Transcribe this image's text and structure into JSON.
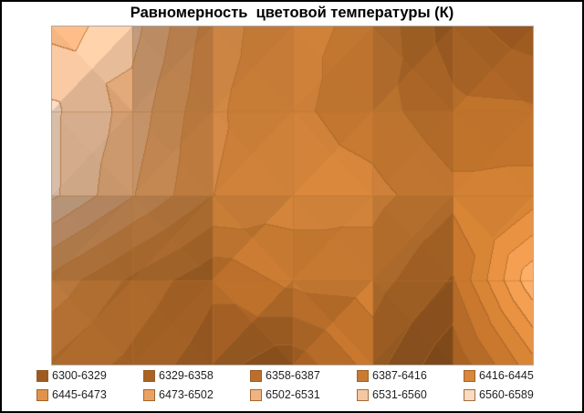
{
  "chart_data": {
    "type": "heatmap",
    "subtype": "surface-contour-top-view",
    "title": "Равномерность  цветовой температуры (К)",
    "grid_rows": 5,
    "grid_cols": 7,
    "values": [
      [
        6522,
        6542,
        6460,
        6422,
        6410,
        6342,
        6310
      ],
      [
        6566,
        6520,
        6450,
        6422,
        6400,
        6365,
        6362
      ],
      [
        6566,
        6505,
        6445,
        6430,
        6425,
        6395,
        6400
      ],
      [
        6465,
        6410,
        6365,
        6395,
        6400,
        6355,
        6495
      ],
      [
        6412,
        6378,
        6340,
        6310,
        6370,
        6305,
        6405
      ]
    ],
    "value_min": 6300,
    "value_max": 6589,
    "band_step": 28.9,
    "axes_visible": false,
    "grid": true,
    "legend_position": "bottom",
    "bands": [
      {
        "label": "6300-6329",
        "color": "#9D5B20"
      },
      {
        "label": "6329-6358",
        "color": "#A96325"
      },
      {
        "label": "6358-6387",
        "color": "#BA6F2A"
      },
      {
        "label": "6387-6416",
        "color": "#C97B32"
      },
      {
        "label": "6416-6445",
        "color": "#D8873C"
      },
      {
        "label": "6445-6473",
        "color": "#E2934B"
      },
      {
        "label": "6473-6502",
        "color": "#EAA262"
      },
      {
        "label": "6502-6531",
        "color": "#F0B381"
      },
      {
        "label": "6531-6560",
        "color": "#F5C7A1"
      },
      {
        "label": "6560-6589",
        "color": "#F9DAC2"
      }
    ]
  },
  "style": {
    "contour_line_color": "#A9672A",
    "mesh_line_color": "#B5742F",
    "plot_border_color": "#ABABAB",
    "outer_border_color": "#000000",
    "background": "#FFFFFF",
    "title_color": "#000000",
    "legend_text_color": "#1F1F1F"
  }
}
